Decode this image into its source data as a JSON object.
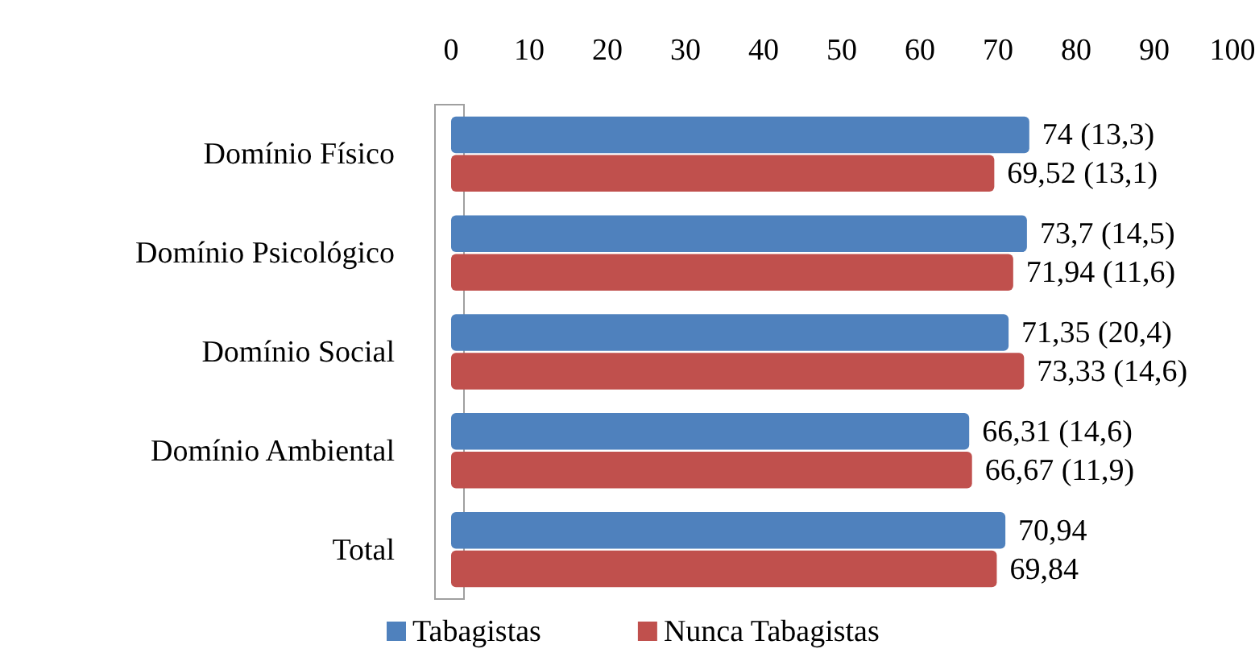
{
  "chart_data": {
    "type": "bar",
    "orientation": "horizontal",
    "categories": [
      "Domínio Físico",
      "Domínio Psicológico",
      "Domínio Social",
      "Domínio Ambiental",
      "Total"
    ],
    "series": [
      {
        "name": "Tabagistas",
        "color": "#4f81bd",
        "values": [
          74,
          73.7,
          71.35,
          66.31,
          70.94
        ],
        "value_labels": [
          "74 (13,3)",
          "73,7 (14,5)",
          "71,35 (20,4)",
          "66,31 (14,6)",
          "70,94"
        ]
      },
      {
        "name": "Nunca Tabagistas",
        "color": "#c0504d",
        "values": [
          69.52,
          71.94,
          73.33,
          66.67,
          69.84
        ],
        "value_labels": [
          "69,52 (13,1)",
          "71,94 (11,6)",
          "73,33 (14,6)",
          "66,67 (11,9)",
          "69,84"
        ]
      }
    ],
    "xlim": [
      0,
      100
    ],
    "xticks": [
      0,
      10,
      20,
      30,
      40,
      50,
      60,
      70,
      80,
      90,
      100
    ],
    "grid": false,
    "legend": "bottom"
  }
}
